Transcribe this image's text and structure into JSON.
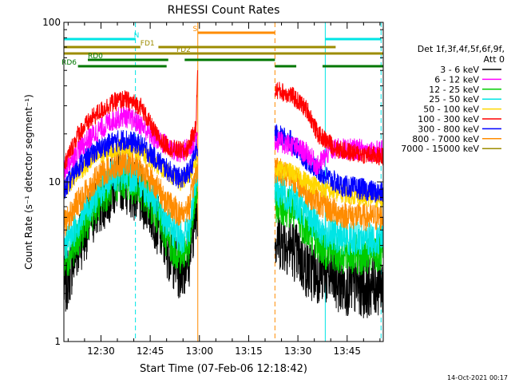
{
  "chart_data": {
    "type": "line",
    "title": "RHESSI Count Rates",
    "xlabel": "Start Time (07-Feb-06 12:18:42)",
    "ylabel": "Count Rate (s⁻¹ detector segment⁻¹)",
    "x_units": "UT minutes (hh:mm)",
    "xlim": [
      "12:18:42",
      "13:56:00"
    ],
    "ylim": [
      1,
      100
    ],
    "y_scale": "log",
    "x_tick_labels": [
      "12:30",
      "12:45",
      "13:00",
      "13:15",
      "13:30",
      "13:45"
    ],
    "y_tick_labels": [
      "1",
      "10",
      "100"
    ],
    "grid": false,
    "legend_header": [
      "Det 1f,3f,4f,5f,6f,9f,",
      "Att 0"
    ],
    "legend_placement": "right",
    "footer_timestamp": "14-Oct-2021 00:17",
    "segments": [
      {
        "x": [
          "12:18:42",
          "12:59:30"
        ]
      },
      {
        "x": [
          "13:23:00",
          "13:56:00"
        ]
      }
    ],
    "vlines": [
      {
        "x": "12:18:42",
        "color": "#00e5e5",
        "style": "solid"
      },
      {
        "x": "12:40:30",
        "color": "#00e5e5",
        "style": "dashed"
      },
      {
        "x": "12:59:30",
        "color": "#ff8c00",
        "style": "solid"
      },
      {
        "x": "13:23:00",
        "color": "#ff8c00",
        "style": "dashed"
      },
      {
        "x": "13:38:20",
        "color": "#00e5e5",
        "style": "solid"
      },
      {
        "x": "13:55:20",
        "color": "#00e5e5",
        "style": "dashed"
      }
    ],
    "flags": [
      {
        "label": "S",
        "color": "#ff8c00",
        "label_start": "12:58:00",
        "intervals": [
          [
            "12:59:30",
            "13:23:00"
          ]
        ]
      },
      {
        "label": "N",
        "color": "#00e5e5",
        "label_start": "12:40:00",
        "intervals": [
          [
            "12:18:42",
            "12:40:30"
          ],
          [
            "13:38:20",
            "13:55:20"
          ]
        ]
      },
      {
        "label": "FD1",
        "color": "#9c8c00",
        "label_start": "12:42:00",
        "intervals": [
          [
            "12:18:42",
            "12:42:00"
          ],
          [
            "12:47:30",
            "13:41:30"
          ]
        ]
      },
      {
        "label": "FD2",
        "color": "#9c8c00",
        "label_start": "12:53:00",
        "intervals": [
          [
            "12:18:42",
            "13:56:00"
          ]
        ]
      },
      {
        "label": "RD0",
        "color": "#007700",
        "label_start": "12:26:00",
        "intervals": [
          [
            "12:26:00",
            "12:50:30"
          ],
          [
            "12:55:30",
            "13:23:00"
          ]
        ]
      },
      {
        "label": "RD6",
        "color": "#007700",
        "label_start": "12:18:00",
        "intervals": [
          [
            "12:23:00",
            "12:50:00"
          ],
          [
            "13:23:00",
            "13:29:30"
          ],
          [
            "13:37:30",
            "13:56:00"
          ]
        ]
      }
    ],
    "series": [
      {
        "name": "3 - 6 keV",
        "color": "#000000",
        "values": [
          [
            "12:19",
            2.2
          ],
          [
            "12:23",
            4.0
          ],
          [
            "12:28",
            6.5
          ],
          [
            "12:33",
            9.0
          ],
          [
            "12:36",
            10.5
          ],
          [
            "12:40",
            9.0
          ],
          [
            "12:45",
            7.0
          ],
          [
            "12:50",
            4.0
          ],
          [
            "12:54",
            2.8
          ],
          [
            "12:57",
            3.5
          ],
          [
            "12:59",
            7.0
          ],
          [
            "13:23",
            4.5
          ],
          [
            "13:28",
            4.0
          ],
          [
            "13:33",
            2.8
          ],
          [
            "13:38",
            2.7
          ],
          [
            "13:43",
            2.3
          ],
          [
            "13:50",
            2.2
          ],
          [
            "13:55",
            2.3
          ]
        ]
      },
      {
        "name": "6 - 12 keV",
        "color": "#ff00ff",
        "values": [
          [
            "12:19",
            12.0
          ],
          [
            "12:23",
            16.0
          ],
          [
            "12:28",
            20.0
          ],
          [
            "12:33",
            24.0
          ],
          [
            "12:37",
            26.0
          ],
          [
            "12:42",
            23.0
          ],
          [
            "12:46",
            19.0
          ],
          [
            "12:50",
            17.0
          ],
          [
            "12:54",
            15.0
          ],
          [
            "12:57",
            16.5
          ],
          [
            "12:59",
            19.5
          ],
          [
            "13:23",
            18.0
          ],
          [
            "13:28",
            17.0
          ],
          [
            "13:33",
            15.0
          ],
          [
            "13:36",
            12.5
          ],
          [
            "13:40",
            16.0
          ],
          [
            "13:48",
            16.0
          ],
          [
            "13:55",
            15.5
          ]
        ]
      },
      {
        "name": "12 - 25 keV",
        "color": "#00cc00",
        "values": [
          [
            "12:19",
            3.1
          ],
          [
            "12:23",
            4.5
          ],
          [
            "12:28",
            7.0
          ],
          [
            "12:33",
            9.5
          ],
          [
            "12:37",
            10.5
          ],
          [
            "12:42",
            9.0
          ],
          [
            "12:46",
            7.0
          ],
          [
            "12:50",
            4.5
          ],
          [
            "12:54",
            3.5
          ],
          [
            "12:57",
            4.0
          ],
          [
            "12:59",
            9.0
          ],
          [
            "13:23",
            7.5
          ],
          [
            "13:28",
            6.8
          ],
          [
            "13:33",
            5.0
          ],
          [
            "13:38",
            3.8
          ],
          [
            "13:43",
            3.5
          ],
          [
            "13:50",
            3.5
          ],
          [
            "13:55",
            3.5
          ]
        ]
      },
      {
        "name": "25 - 50 keV",
        "color": "#00e5e5",
        "values": [
          [
            "12:19",
            4.0
          ],
          [
            "12:23",
            5.5
          ],
          [
            "12:28",
            8.0
          ],
          [
            "12:33",
            10.5
          ],
          [
            "12:37",
            11.5
          ],
          [
            "12:42",
            10.0
          ],
          [
            "12:46",
            8.0
          ],
          [
            "12:50",
            5.5
          ],
          [
            "12:54",
            4.4
          ],
          [
            "12:57",
            5.0
          ],
          [
            "12:59",
            11.0
          ],
          [
            "13:23",
            9.0
          ],
          [
            "13:28",
            8.0
          ],
          [
            "13:33",
            6.2
          ],
          [
            "13:38",
            4.8
          ],
          [
            "13:43",
            4.5
          ],
          [
            "13:50",
            4.4
          ],
          [
            "13:55",
            4.4
          ]
        ]
      },
      {
        "name": "50 - 100 keV",
        "color": "#ffd700",
        "values": [
          [
            "12:19",
            9.0
          ],
          [
            "12:23",
            11.5
          ],
          [
            "12:28",
            14.0
          ],
          [
            "12:33",
            16.0
          ],
          [
            "12:37",
            17.0
          ],
          [
            "12:42",
            15.5
          ],
          [
            "12:46",
            13.5
          ],
          [
            "12:50",
            11.5
          ],
          [
            "12:54",
            10.0
          ],
          [
            "12:57",
            11.0
          ],
          [
            "12:59",
            14.0
          ],
          [
            "13:23",
            12.0
          ],
          [
            "13:28",
            11.5
          ],
          [
            "13:33",
            10.0
          ],
          [
            "13:38",
            9.0
          ],
          [
            "13:43",
            8.5
          ],
          [
            "13:50",
            8.0
          ],
          [
            "13:55",
            8.0
          ]
        ]
      },
      {
        "name": "100 - 300 keV",
        "color": "#ff0000",
        "values": [
          [
            "12:19",
            13.0
          ],
          [
            "12:23",
            20.0
          ],
          [
            "12:28",
            26.0
          ],
          [
            "12:33",
            31.0
          ],
          [
            "12:37",
            33.0
          ],
          [
            "12:42",
            30.0
          ],
          [
            "12:45",
            23.0
          ],
          [
            "12:48",
            18.0
          ],
          [
            "12:52",
            16.0
          ],
          [
            "12:56",
            15.5
          ],
          [
            "12:59",
            22.0
          ],
          [
            "12:59:20",
            45.0
          ],
          [
            "13:23",
            38.0
          ],
          [
            "13:28",
            35.0
          ],
          [
            "13:33",
            28.0
          ],
          [
            "13:36",
            20.0
          ],
          [
            "13:42",
            16.0
          ],
          [
            "13:48",
            15.0
          ],
          [
            "13:55",
            14.5
          ]
        ]
      },
      {
        "name": "300 - 800 keV",
        "color": "#0000ff",
        "values": [
          [
            "12:19",
            9.0
          ],
          [
            "12:23",
            12.5
          ],
          [
            "12:28",
            15.5
          ],
          [
            "12:33",
            17.5
          ],
          [
            "12:37",
            18.5
          ],
          [
            "12:42",
            17.0
          ],
          [
            "12:46",
            14.5
          ],
          [
            "12:50",
            12.0
          ],
          [
            "12:54",
            10.5
          ],
          [
            "12:57",
            11.5
          ],
          [
            "12:59",
            16.0
          ],
          [
            "13:23",
            20.0
          ],
          [
            "13:28",
            18.0
          ],
          [
            "13:33",
            13.5
          ],
          [
            "13:38",
            11.0
          ],
          [
            "13:43",
            9.5
          ],
          [
            "13:50",
            9.0
          ],
          [
            "13:55",
            8.5
          ]
        ]
      },
      {
        "name": "800 - 7000 keV",
        "color": "#ff8c00",
        "values": [
          [
            "12:19",
            5.5
          ],
          [
            "12:23",
            7.5
          ],
          [
            "12:28",
            10.0
          ],
          [
            "12:33",
            12.5
          ],
          [
            "12:37",
            13.5
          ],
          [
            "12:42",
            12.0
          ],
          [
            "12:46",
            10.0
          ],
          [
            "12:50",
            7.5
          ],
          [
            "12:54",
            6.3
          ],
          [
            "12:57",
            7.0
          ],
          [
            "12:59",
            12.0
          ],
          [
            "13:23",
            12.0
          ],
          [
            "13:28",
            11.0
          ],
          [
            "13:33",
            8.5
          ],
          [
            "13:38",
            7.0
          ],
          [
            "13:43",
            6.3
          ],
          [
            "13:50",
            6.0
          ],
          [
            "13:55",
            6.0
          ]
        ]
      },
      {
        "name": "7000 - 15000 keV",
        "color": "#9c8c00",
        "values": []
      }
    ]
  }
}
